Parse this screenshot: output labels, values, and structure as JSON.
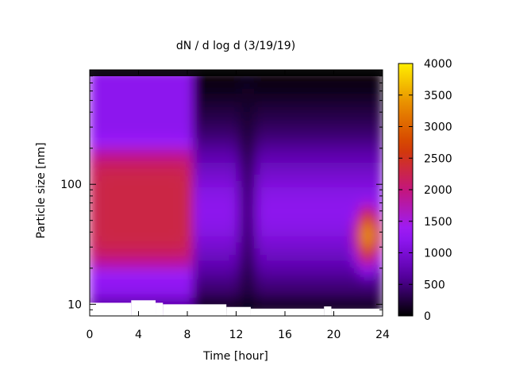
{
  "chart_data": {
    "type": "heatmap",
    "title": "dN / d log d (3/19/19)",
    "xlabel": "Time [hour]",
    "ylabel": "Particle size [nm]",
    "x_range": [
      0,
      24
    ],
    "y_range": [
      8.0,
      900
    ],
    "y_scale": "log",
    "x_ticks": [
      0,
      4,
      8,
      12,
      16,
      20,
      24
    ],
    "x_tick_labels": [
      "0",
      "4",
      "8",
      "12",
      "16",
      "20",
      "24"
    ],
    "y_ticks": [
      10,
      100
    ],
    "y_tick_labels": [
      "10",
      "100"
    ],
    "colorbar": {
      "range": [
        0,
        4000
      ],
      "ticks": [
        0,
        500,
        1000,
        1500,
        2000,
        2500,
        3000,
        3500,
        4000
      ],
      "tick_labels": [
        "0",
        "500",
        "1000",
        "1500",
        "2000",
        "2500",
        "3000",
        "3500",
        "4000"
      ],
      "colormap": [
        "#000000",
        "#5a00a8",
        "#9a1cff",
        "#c4167c",
        "#d43c00",
        "#e88a00",
        "#ffee00"
      ]
    },
    "lower_size_limit": [
      {
        "x": [
          0,
          3.4
        ],
        "y": 10.3
      },
      {
        "x": [
          3.4,
          5.4
        ],
        "y": 10.8
      },
      {
        "x": [
          5.4,
          6.0
        ],
        "y": 10.3
      },
      {
        "x": [
          6.0,
          11.2
        ],
        "y": 10.0
      },
      {
        "x": [
          11.2,
          13.2
        ],
        "y": 9.5
      },
      {
        "x": [
          13.2,
          19.2
        ],
        "y": 9.2
      },
      {
        "x": [
          19.2,
          19.8
        ],
        "y": 9.6
      },
      {
        "x": [
          19.8,
          24
        ],
        "y": 9.2
      }
    ],
    "features": [
      {
        "x_range": [
          0,
          8.5
        ],
        "y_range": [
          20,
          200
        ],
        "value": 2300
      },
      {
        "x_range": [
          20.5,
          24
        ],
        "y_range": [
          17,
          115
        ],
        "peak": {
          "x": 22.8,
          "y": 38,
          "value": 3500
        }
      },
      {
        "x_range": [
          12.3,
          13.6
        ],
        "y_range": [
          9.2,
          900
        ],
        "value": 150
      }
    ]
  }
}
